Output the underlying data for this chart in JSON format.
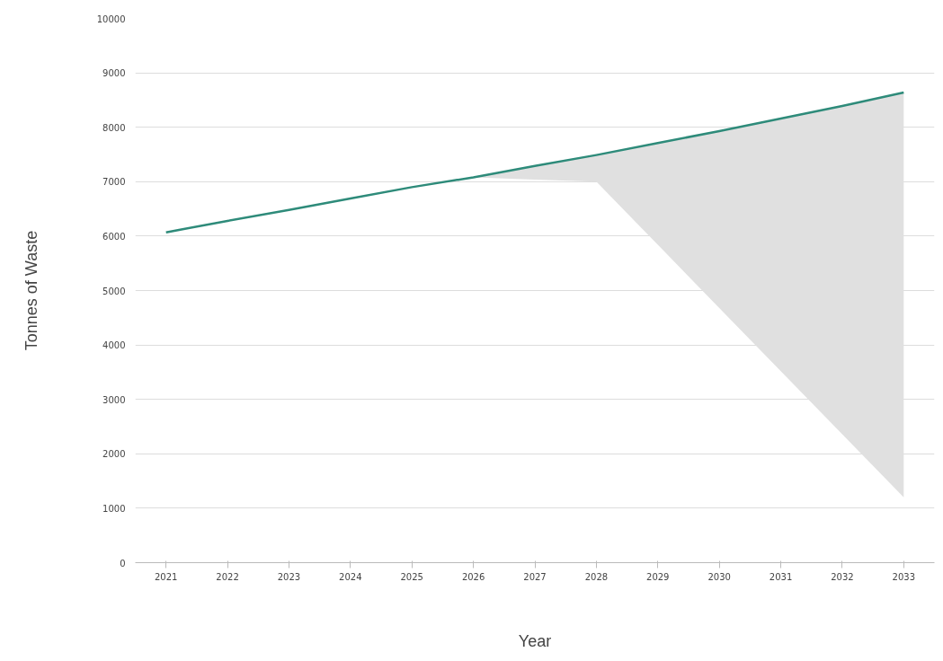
{
  "chart_data": {
    "type": "line",
    "xlabel": "Year",
    "ylabel": "Tonnes of Waste",
    "categories": [
      "2021",
      "2022",
      "2023",
      "2024",
      "2025",
      "2026",
      "2027",
      "2028",
      "2029",
      "2030",
      "2031",
      "2032",
      "2033"
    ],
    "series": [
      {
        "color": "#2e8b7a",
        "values": [
          6070,
          6280,
          6480,
          6690,
          6900,
          7080,
          7290,
          7490,
          7710,
          7930,
          8160,
          8390,
          8640
        ],
        "upper": [
          6070,
          6280,
          6480,
          6690,
          6900,
          7080,
          7290,
          7490,
          7710,
          7930,
          8160,
          8390,
          8640
        ],
        "lower": [
          6070,
          6280,
          6480,
          6690,
          6900,
          7080,
          7040,
          7000,
          5840,
          4680,
          3520,
          2360,
          1200
        ]
      }
    ],
    "ylim": [
      0,
      10000
    ],
    "yticks": [
      0,
      1000,
      2000,
      3000,
      4000,
      5000,
      6000,
      7000,
      8000,
      9000,
      10000
    ],
    "grid": "y",
    "marker": "none",
    "line_style": "solid"
  }
}
